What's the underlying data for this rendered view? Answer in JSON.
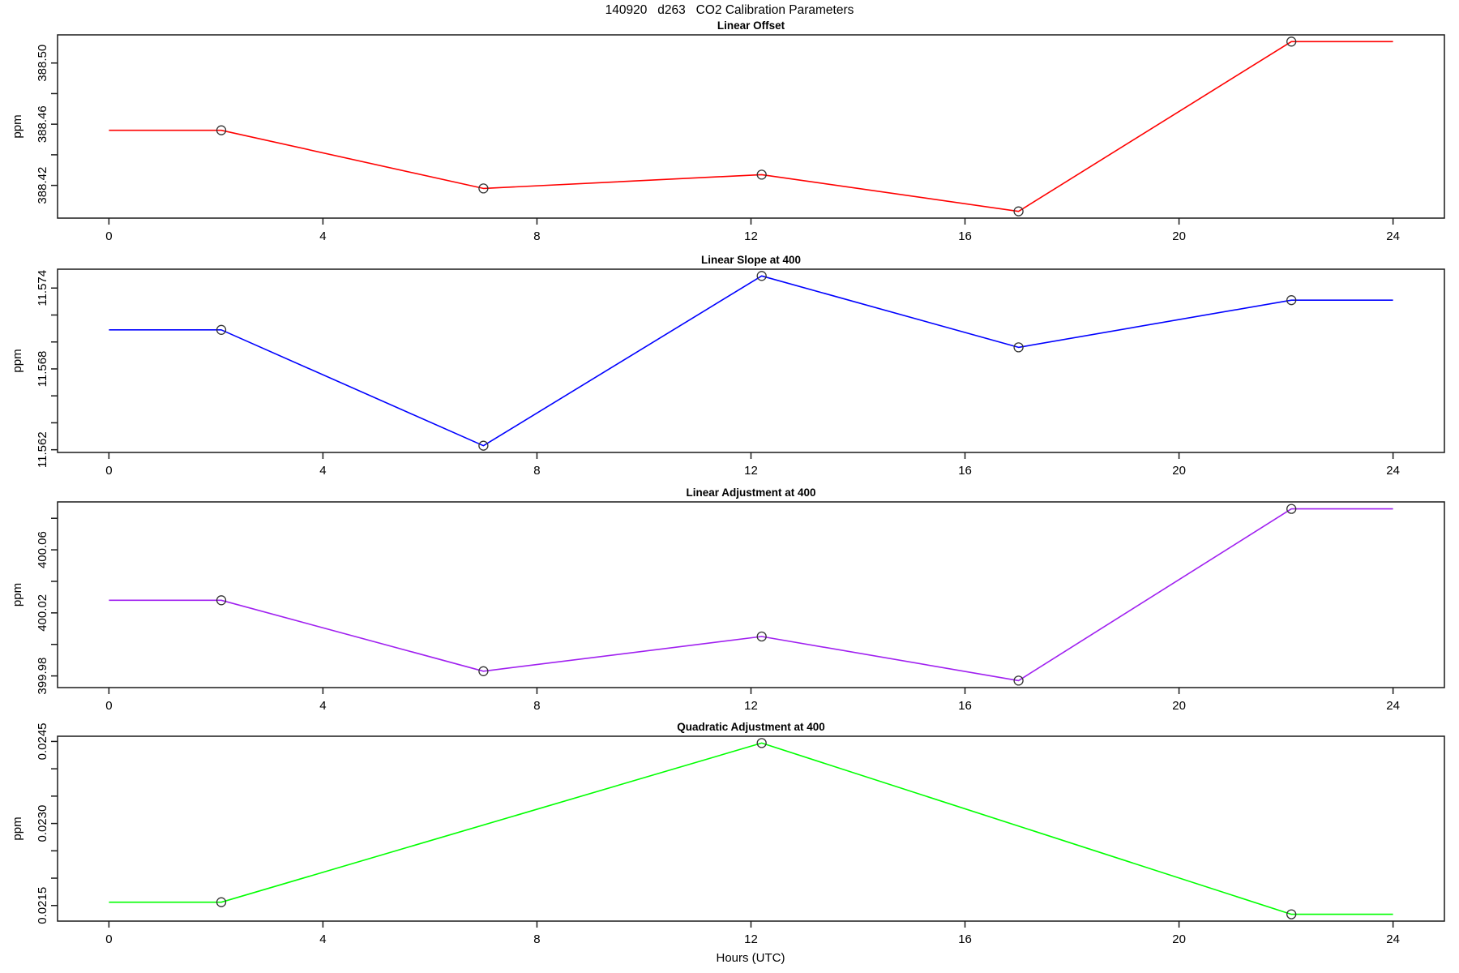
{
  "figure": {
    "background": "#ffffff",
    "axis_color": "#000000"
  },
  "chart_data": {
    "type": "line",
    "title": "140920   d263   CO2 Calibration Parameters",
    "xlabel": "Hours (UTC)",
    "marker": "open-circle",
    "grid": "off",
    "legend": "none",
    "xlim": [
      -0.96,
      24.96
    ],
    "xticks": [
      0,
      4,
      8,
      12,
      16,
      20,
      24
    ],
    "xtick_labels": [
      "0",
      "4",
      "8",
      "12",
      "16",
      "20",
      "24"
    ],
    "line_note": "each series extends flat from x=0 to the first point and flat from the last point to x=24",
    "panels": [
      {
        "title": "Linear Offset",
        "ylabel": "ppm",
        "color": "#ff0000",
        "x": [
          2.1,
          7.0,
          12.2,
          17.0,
          22.1
        ],
        "y": [
          388.456,
          388.418,
          388.427,
          388.403,
          388.514
        ],
        "ylim": [
          388.3986,
          388.5184
        ],
        "ytick_values": [
          388.42,
          388.44,
          388.46,
          388.48,
          388.5
        ],
        "ytick_labels": [
          "388.42",
          "",
          "388.46",
          "",
          "388.50"
        ]
      },
      {
        "title": "Linear Slope at 400",
        "ylabel": "ppm",
        "color": "#0000ff",
        "x": [
          2.1,
          7.0,
          12.2,
          17.0,
          22.1
        ],
        "y": [
          11.5709,
          11.5623,
          11.5749,
          11.5696,
          11.5731
        ],
        "ylim": [
          11.5618,
          11.5754
        ],
        "ytick_values": [
          11.562,
          11.564,
          11.566,
          11.568,
          11.57,
          11.572,
          11.574
        ],
        "ytick_labels": [
          "11.562",
          "",
          "",
          "11.568",
          "",
          "",
          "11.574"
        ]
      },
      {
        "title": "Linear Adjustment at 400",
        "ylabel": "ppm",
        "color": "#a020f0",
        "x": [
          2.1,
          7.0,
          12.2,
          17.0,
          22.1
        ],
        "y": [
          400.028,
          399.983,
          400.005,
          399.977,
          400.086
        ],
        "ylim": [
          399.9726,
          400.0904
        ],
        "ytick_values": [
          399.98,
          400.0,
          400.02,
          400.04,
          400.06,
          400.08
        ],
        "ytick_labels": [
          "399.98",
          "",
          "400.02",
          "",
          "400.06",
          ""
        ]
      },
      {
        "title": "Quadratic Adjustment at 400",
        "ylabel": "ppm",
        "color": "#00ff00",
        "x": [
          2.1,
          12.2,
          22.1
        ],
        "y": [
          0.02156,
          0.02447,
          0.02134
        ],
        "ylim": [
          0.0212148,
          0.0245952
        ],
        "ytick_values": [
          0.0215,
          0.022,
          0.0225,
          0.023,
          0.0235,
          0.024,
          0.0245
        ],
        "ytick_labels": [
          "0.0215",
          "",
          "",
          "0.0230",
          "",
          "",
          "0.0245"
        ]
      }
    ]
  }
}
